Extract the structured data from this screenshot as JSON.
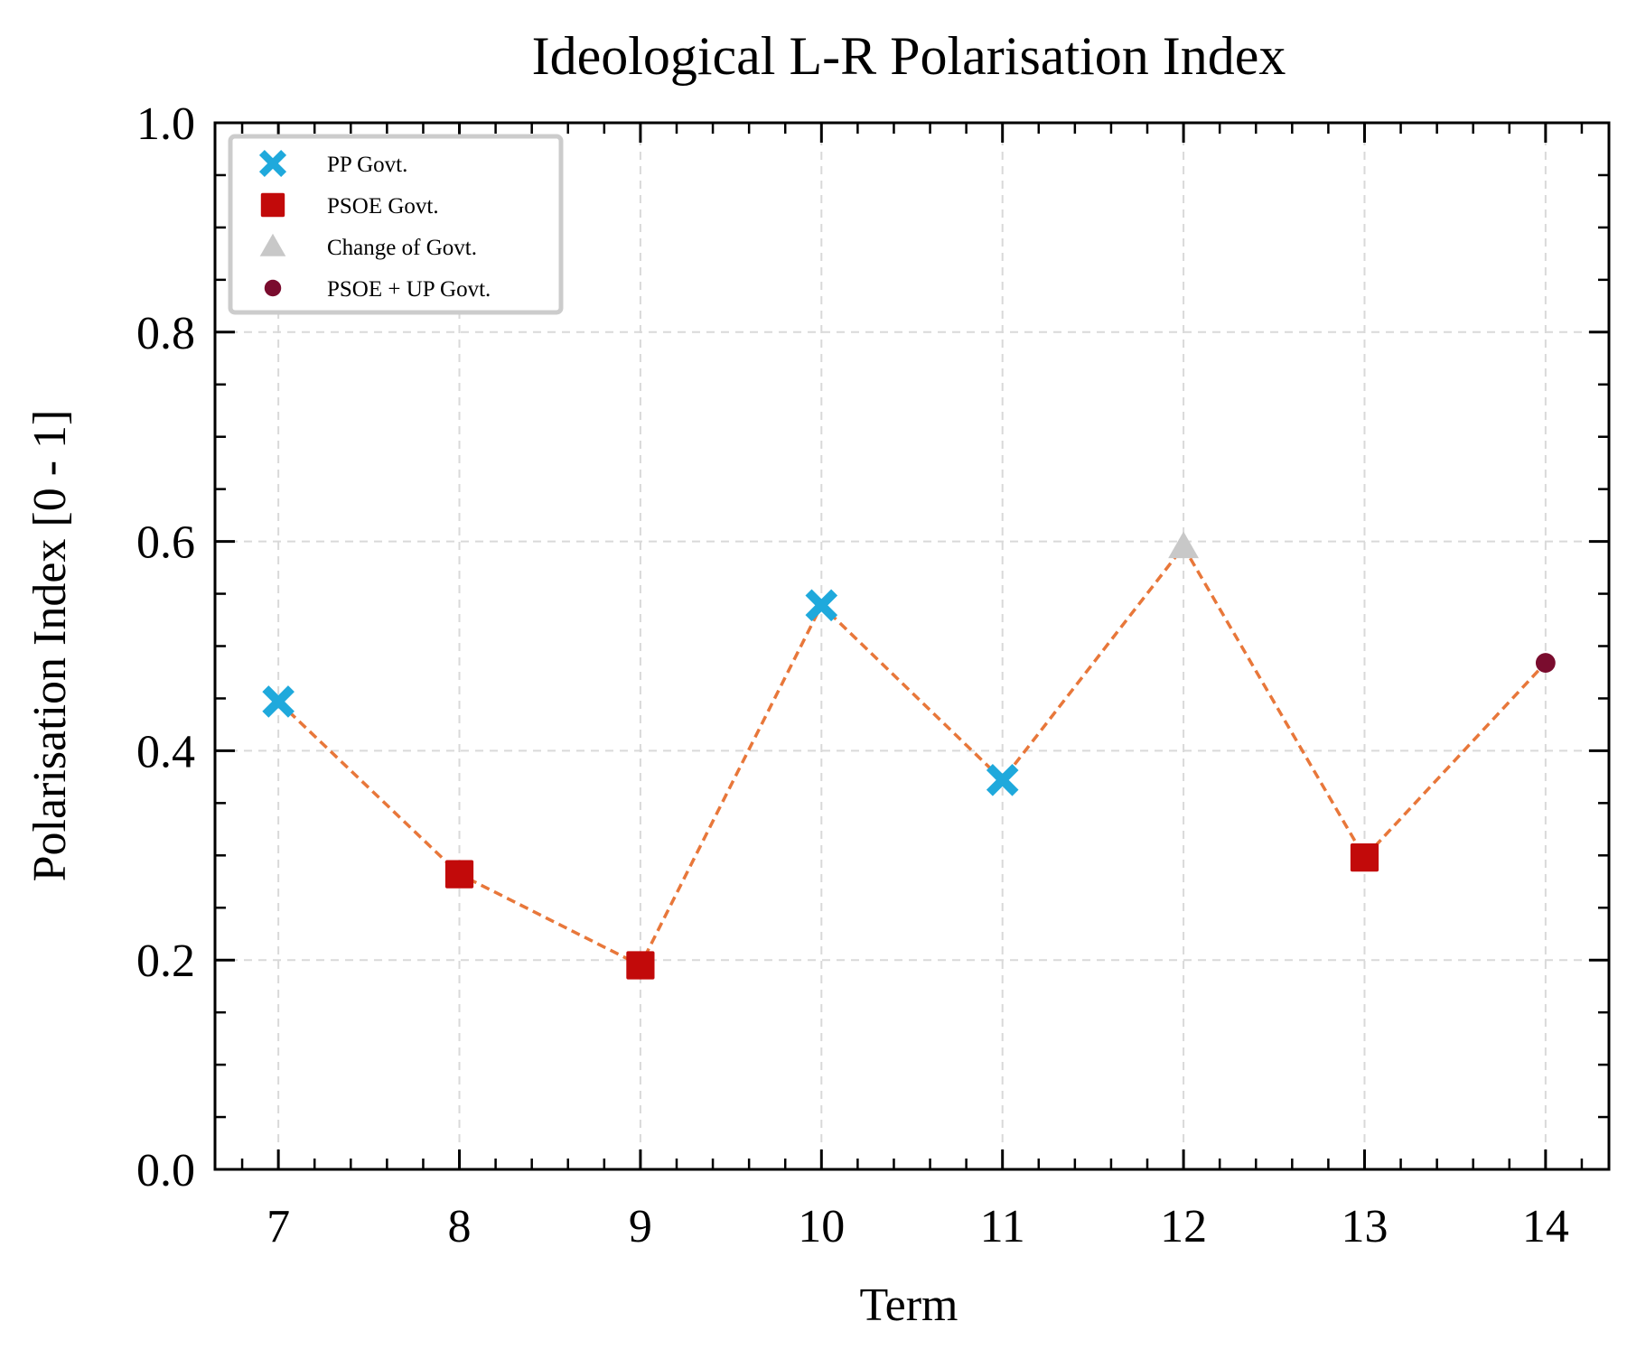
{
  "chart_data": {
    "type": "scatter",
    "title": "Ideological L-R Polarisation Index",
    "xlabel": "Term",
    "ylabel": "Polarisation Index [0 - 1]",
    "xlim": [
      6.65,
      14.35
    ],
    "ylim": [
      0,
      1
    ],
    "xticks": [
      7,
      8,
      9,
      10,
      11,
      12,
      13,
      14
    ],
    "xtick_labels": [
      "7",
      "8",
      "9",
      "10",
      "11",
      "12",
      "13",
      "14"
    ],
    "yticks": [
      0,
      0.2,
      0.4,
      0.6,
      0.8,
      1.0
    ],
    "ytick_labels": [
      "0.0",
      "0.2",
      "0.4",
      "0.6",
      "0.8",
      "1.0"
    ],
    "grid": true,
    "legend_position": "top-left",
    "line": {
      "style": "dashed",
      "color": "#e8773a",
      "x": [
        7,
        8,
        9,
        10,
        11,
        12,
        13,
        14
      ],
      "y": [
        0.447,
        0.282,
        0.195,
        0.539,
        0.372,
        0.595,
        0.298,
        0.484
      ]
    },
    "series": [
      {
        "name": "PP Govt.",
        "marker": "x",
        "color": "#1fa9dc",
        "x": [
          7,
          10,
          11
        ],
        "y": [
          0.447,
          0.539,
          0.372
        ]
      },
      {
        "name": "PSOE Govt.",
        "marker": "square",
        "color": "#c20a0a",
        "x": [
          8,
          9,
          13
        ],
        "y": [
          0.282,
          0.195,
          0.298
        ]
      },
      {
        "name": "Change of Govt.",
        "marker": "triangle",
        "color": "#c8c8c8",
        "x": [
          12
        ],
        "y": [
          0.595
        ]
      },
      {
        "name": "PSOE + UP Govt.",
        "marker": "circle",
        "color": "#7a0c2e",
        "x": [
          14
        ],
        "y": [
          0.484
        ]
      }
    ]
  }
}
